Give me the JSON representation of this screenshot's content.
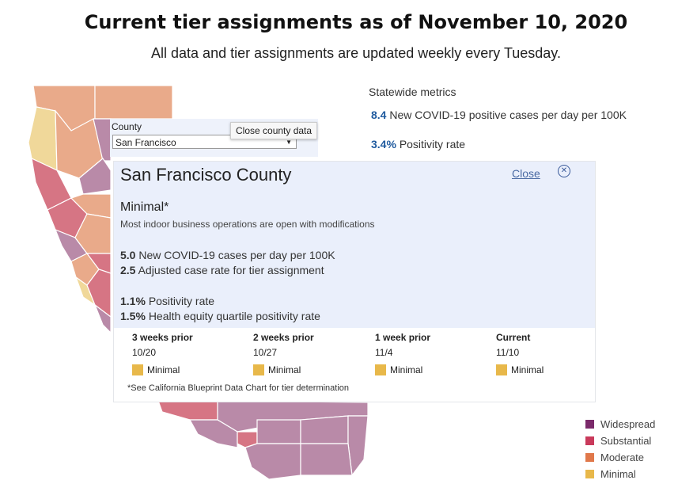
{
  "header": {
    "title": "Current tier assignments as of November 10, 2020",
    "subtitle": "All data and tier assignments are updated weekly every Tuesday."
  },
  "statewide": {
    "heading": "Statewide metrics",
    "cases": {
      "value": "8.4",
      "label": "New COVID-19 positive cases per day per 100K"
    },
    "positivity": {
      "value": "3.4%",
      "label": "Positivity rate"
    }
  },
  "county_selector": {
    "label": "County",
    "selected": "San Francisco",
    "tooltip": "Close county data"
  },
  "county_panel": {
    "name": "San Francisco County",
    "close_label": "Close",
    "close_icon": "close-circle-icon",
    "tier": "Minimal*",
    "tier_description": "Most indoor business operations are open with modifications",
    "metrics": [
      {
        "value": "5.0",
        "label": "New COVID-19 cases per day per 100K"
      },
      {
        "value": "2.5",
        "label": "Adjusted case rate for tier assignment"
      },
      {
        "value": "1.1%",
        "label": "Positivity rate"
      },
      {
        "value": "1.5%",
        "label": "Health equity quartile positivity rate"
      }
    ],
    "history": [
      {
        "label": "3 weeks prior",
        "date": "10/20",
        "tier": "Minimal"
      },
      {
        "label": "2 weeks prior",
        "date": "10/27",
        "tier": "Minimal"
      },
      {
        "label": "1 week prior",
        "date": "11/4",
        "tier": "Minimal"
      },
      {
        "label": "Current",
        "date": "11/10",
        "tier": "Minimal"
      }
    ],
    "footnote": "*See California Blueprint Data Chart for tier determination"
  },
  "legend": [
    {
      "label": "Widespread",
      "color": "#7b2a6b"
    },
    {
      "label": "Substantial",
      "color": "#c93a5b"
    },
    {
      "label": "Moderate",
      "color": "#e0784a"
    },
    {
      "label": "Minimal",
      "color": "#e8b84a"
    }
  ],
  "colors": {
    "widespread_map": "#b98aa8",
    "substantial_map": "#d67584",
    "moderate_map": "#e9aa8a",
    "minimal_map": "#f0d89a",
    "accent_blue": "#1f5a9e"
  }
}
